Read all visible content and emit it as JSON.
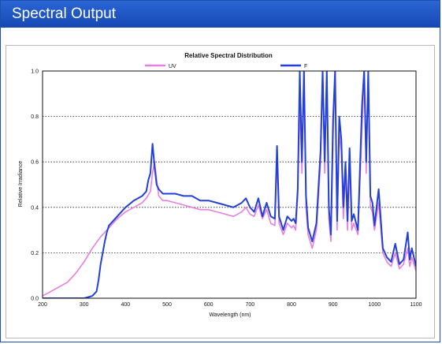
{
  "panel": {
    "title": "Spectral Output"
  },
  "chart_data": {
    "type": "line",
    "title": "Relative Spectral Distribution",
    "xlabel": "Wavelength (nm)",
    "ylabel": "Relative Irradiance",
    "xlim": [
      200,
      1100
    ],
    "ylim": [
      0,
      1.0
    ],
    "xticks": [
      "200",
      "300",
      "400",
      "500",
      "600",
      "700",
      "800",
      "900",
      "1000",
      "1100"
    ],
    "yticks": [
      "0.0",
      "0.2",
      "0.4",
      "0.6",
      "0.8",
      "1.0"
    ],
    "grid": "horizontal dotted",
    "legend": "top",
    "colors": {
      "UV": "#e87ee0",
      "F": "#2340d8"
    },
    "series": [
      {
        "name": "UV",
        "x": [
          200,
          220,
          240,
          260,
          280,
          300,
          320,
          340,
          360,
          380,
          400,
          420,
          440,
          450,
          460,
          465,
          470,
          475,
          480,
          490,
          500,
          520,
          540,
          560,
          580,
          600,
          620,
          640,
          660,
          680,
          690,
          700,
          710,
          720,
          730,
          740,
          750,
          760,
          765,
          770,
          780,
          790,
          800,
          805,
          810,
          815,
          820,
          825,
          830,
          835,
          840,
          850,
          860,
          870,
          875,
          880,
          885,
          890,
          895,
          900,
          905,
          910,
          915,
          920,
          925,
          930,
          935,
          940,
          945,
          950,
          960,
          970,
          975,
          980,
          985,
          990,
          995,
          1000,
          1010,
          1020,
          1030,
          1040,
          1050,
          1060,
          1070,
          1080,
          1085,
          1090,
          1100
        ],
        "values": [
          0.01,
          0.03,
          0.05,
          0.07,
          0.11,
          0.16,
          0.22,
          0.27,
          0.31,
          0.35,
          0.38,
          0.4,
          0.42,
          0.44,
          0.47,
          0.55,
          0.6,
          0.52,
          0.45,
          0.43,
          0.43,
          0.42,
          0.41,
          0.4,
          0.39,
          0.39,
          0.38,
          0.37,
          0.36,
          0.38,
          0.4,
          0.37,
          0.36,
          0.41,
          0.35,
          0.39,
          0.33,
          0.32,
          0.62,
          0.33,
          0.28,
          0.33,
          0.31,
          0.32,
          0.3,
          0.45,
          0.85,
          0.55,
          1.0,
          0.4,
          0.28,
          0.22,
          0.3,
          0.6,
          1.0,
          0.55,
          1.0,
          0.35,
          0.25,
          0.7,
          1.0,
          0.3,
          0.72,
          0.65,
          0.35,
          0.55,
          0.3,
          0.6,
          0.3,
          0.33,
          0.28,
          0.75,
          1.0,
          0.55,
          1.0,
          0.4,
          0.38,
          0.3,
          0.42,
          0.2,
          0.16,
          0.14,
          0.2,
          0.13,
          0.15,
          0.22,
          0.14,
          0.18,
          0.12
        ]
      },
      {
        "name": "F",
        "x": [
          200,
          250,
          300,
          310,
          320,
          330,
          335,
          340,
          345,
          350,
          355,
          360,
          380,
          400,
          420,
          440,
          450,
          455,
          460,
          465,
          470,
          475,
          480,
          490,
          500,
          520,
          540,
          560,
          580,
          600,
          620,
          640,
          660,
          680,
          690,
          700,
          710,
          720,
          730,
          740,
          750,
          760,
          765,
          770,
          780,
          790,
          800,
          805,
          810,
          815,
          820,
          825,
          830,
          835,
          840,
          850,
          860,
          870,
          875,
          880,
          885,
          890,
          895,
          900,
          905,
          910,
          915,
          920,
          925,
          930,
          935,
          940,
          945,
          950,
          960,
          970,
          975,
          980,
          985,
          990,
          995,
          1000,
          1010,
          1020,
          1030,
          1040,
          1050,
          1060,
          1070,
          1080,
          1085,
          1090,
          1100
        ],
        "values": [
          0.0,
          0.0,
          0.0,
          0.005,
          0.01,
          0.03,
          0.08,
          0.15,
          0.2,
          0.25,
          0.29,
          0.32,
          0.36,
          0.4,
          0.43,
          0.45,
          0.47,
          0.52,
          0.55,
          0.68,
          0.58,
          0.5,
          0.48,
          0.46,
          0.46,
          0.46,
          0.45,
          0.45,
          0.43,
          0.43,
          0.42,
          0.41,
          0.4,
          0.42,
          0.44,
          0.4,
          0.38,
          0.44,
          0.36,
          0.42,
          0.36,
          0.35,
          0.67,
          0.36,
          0.3,
          0.36,
          0.34,
          0.35,
          0.33,
          0.48,
          1.0,
          0.6,
          1.0,
          0.45,
          0.31,
          0.25,
          0.33,
          0.65,
          1.0,
          0.6,
          1.0,
          0.4,
          0.28,
          0.78,
          1.0,
          0.34,
          0.8,
          0.7,
          0.4,
          0.6,
          0.34,
          0.66,
          0.34,
          0.37,
          0.3,
          0.85,
          1.0,
          0.6,
          1.0,
          0.45,
          0.42,
          0.32,
          0.48,
          0.22,
          0.18,
          0.16,
          0.24,
          0.15,
          0.17,
          0.29,
          0.17,
          0.22,
          0.14
        ]
      }
    ]
  }
}
